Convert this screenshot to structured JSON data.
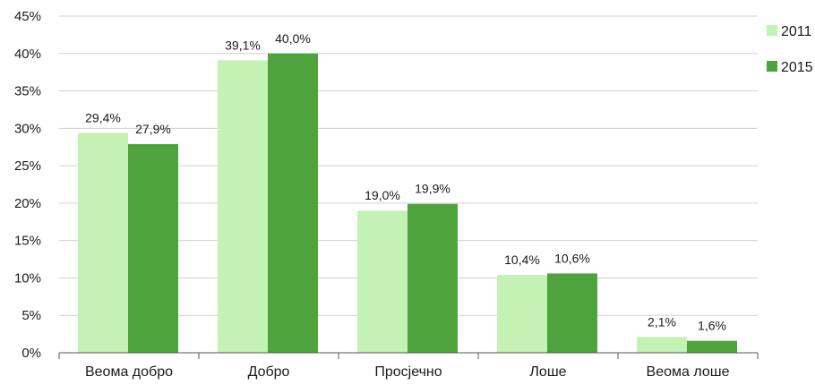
{
  "chart_data": {
    "type": "bar",
    "categories": [
      "Веома добро",
      "Добро",
      "Просјечно",
      "Лоше",
      "Веома лоше"
    ],
    "series": [
      {
        "name": "2011",
        "values": [
          29.4,
          39.1,
          19.0,
          10.4,
          2.1
        ],
        "labels": [
          "29,4%",
          "39,1%",
          "19,0%",
          "10,4%",
          "2,1%"
        ],
        "color": "#c4f2b4"
      },
      {
        "name": "2015",
        "values": [
          27.9,
          40.0,
          19.9,
          10.6,
          1.6
        ],
        "labels": [
          "27,9%",
          "40,0%",
          "19,9%",
          "10,6%",
          "1,6%"
        ],
        "color": "#4ea33c"
      }
    ],
    "yticks": [
      0,
      5,
      10,
      15,
      20,
      25,
      30,
      35,
      40,
      45
    ],
    "ytick_labels": [
      "0%",
      "5%",
      "10%",
      "15%",
      "20%",
      "25%",
      "30%",
      "35%",
      "40%",
      "45%"
    ],
    "ylim": [
      0,
      45
    ],
    "grid": true,
    "legend_position": "top-right",
    "gridline_color": "#d0d0d0",
    "axis_color": "#555555"
  }
}
